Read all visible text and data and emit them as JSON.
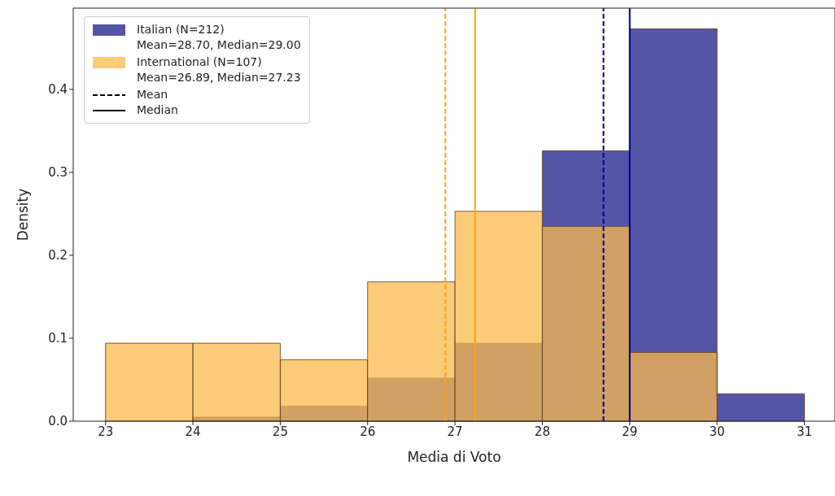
{
  "chart_data": {
    "type": "histogram",
    "xlabel": "Media di Voto",
    "ylabel": "Density",
    "bins": [
      23,
      24,
      25,
      26,
      27,
      28,
      29,
      30,
      31
    ],
    "series": [
      {
        "name": "Italian (N=212)\nMean=28.70, Median=29.00",
        "color": "#5555a8",
        "values": [
          0,
          0.005,
          0.018,
          0.052,
          0.094,
          0.326,
          0.473,
          0.033
        ]
      },
      {
        "name": "International (N=107)\nMean=26.89, Median=27.23",
        "color": "#fbb94c",
        "values": [
          0.094,
          0.094,
          0.074,
          0.168,
          0.253,
          0.235,
          0.083,
          0
        ]
      }
    ],
    "ref_lines": [
      {
        "axis": "x",
        "value": 26.89,
        "color": "#ffa500",
        "line_style": "dashed"
      },
      {
        "axis": "x",
        "value": 27.23,
        "color": "#ffa500",
        "line_style": "solid"
      },
      {
        "axis": "x",
        "value": 28.7,
        "color": "#00008b",
        "line_style": "dashed"
      },
      {
        "axis": "x",
        "value": 29.0,
        "color": "#00008b",
        "line_style": "solid"
      }
    ],
    "xlim": [
      22.63,
      31.35
    ],
    "xticks": [
      23,
      24,
      25,
      26,
      27,
      28,
      29,
      30,
      31
    ],
    "ylim": [
      0,
      0.498
    ],
    "yticks": [
      {
        "value": 0,
        "label": "0.0"
      },
      {
        "value": 0.1,
        "label": "0.1"
      },
      {
        "value": 0.2,
        "label": "0.2"
      },
      {
        "value": 0.3,
        "label": "0.3"
      },
      {
        "value": 0.4,
        "label": "0.4"
      }
    ],
    "annotations": [
      "Mean",
      "Median"
    ],
    "legend": "top left"
  }
}
